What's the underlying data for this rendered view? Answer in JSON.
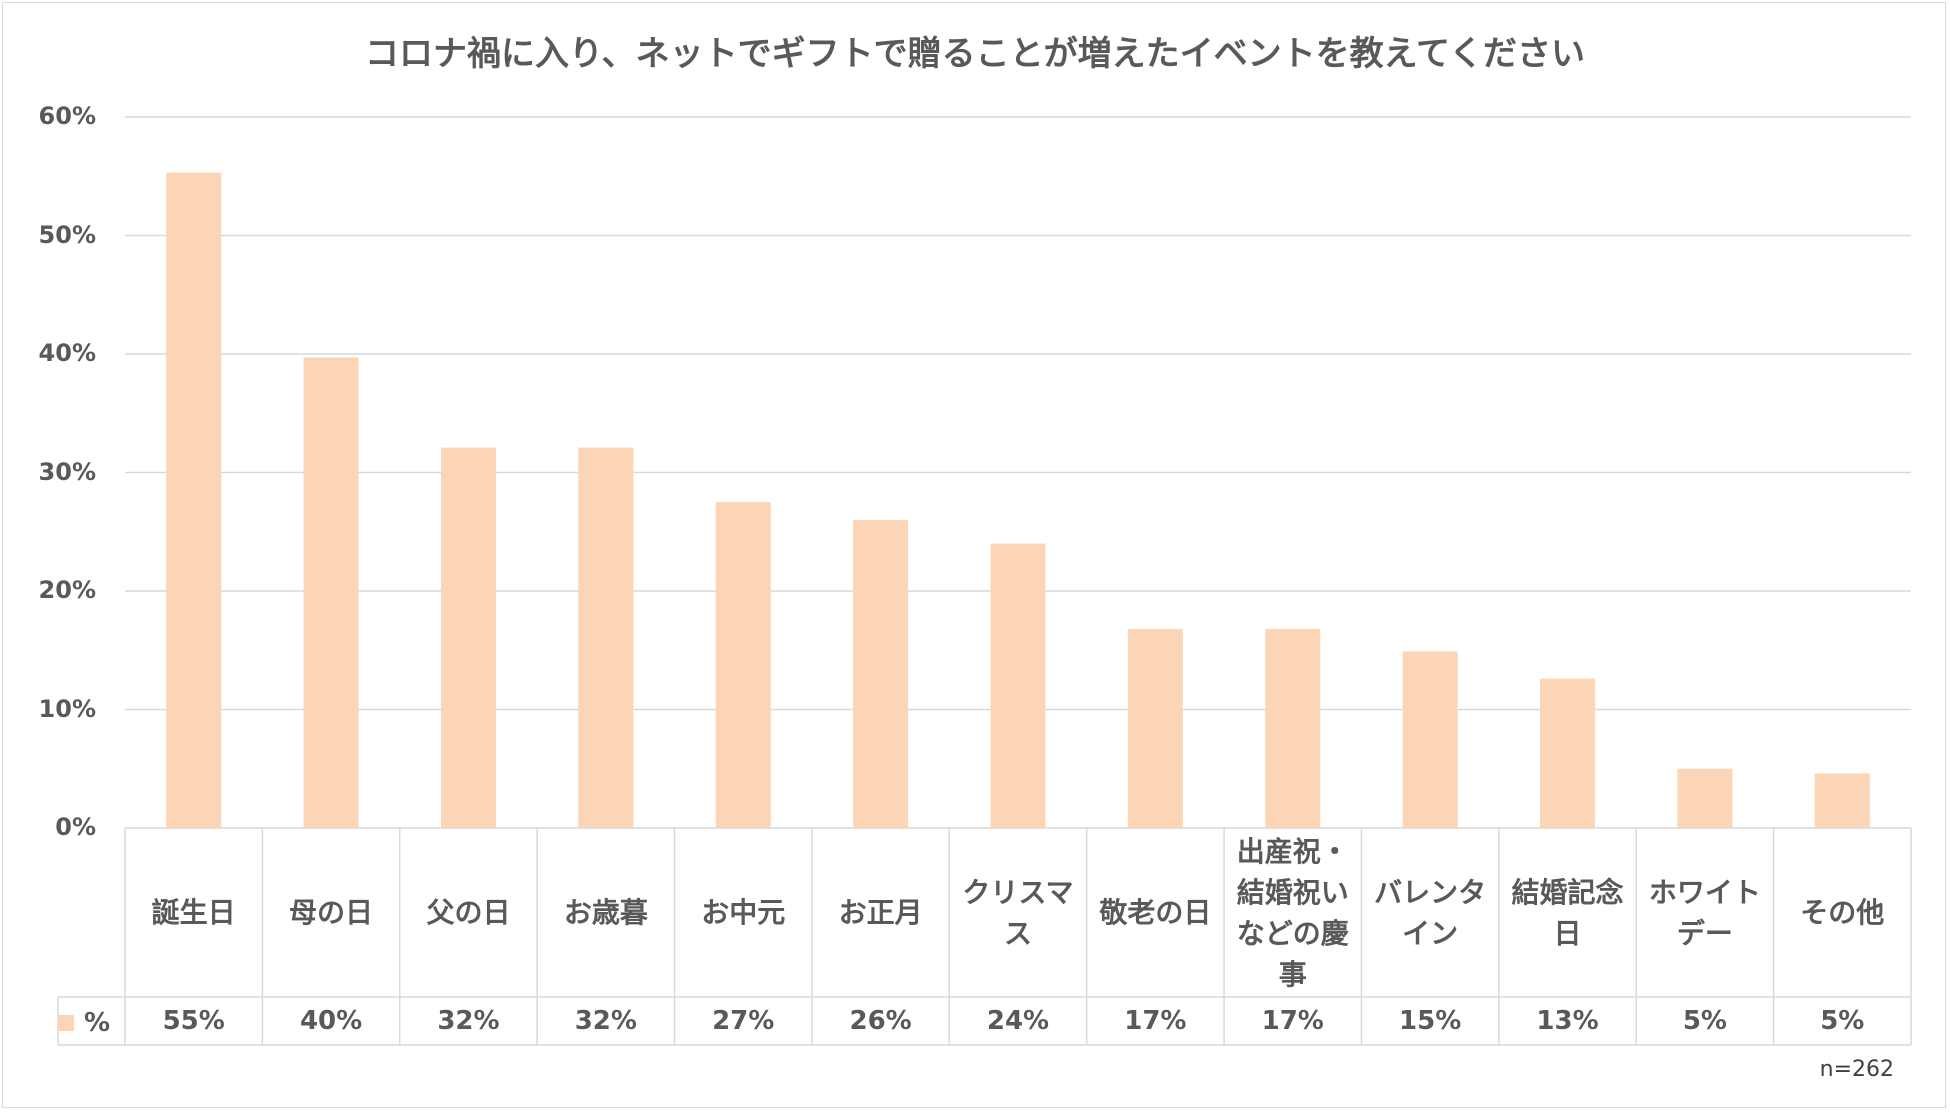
{
  "chart_data": {
    "type": "bar",
    "title": "コロナ禍に入り、ネットでギフトで贈ることが増えたイベントを教えてください",
    "categories": [
      "誕生日",
      "母の日",
      "父の日",
      "お歳暮",
      "お中元",
      "お正月",
      "クリスマス",
      "敬老の日",
      "出産祝・結婚祝いなどの慶事",
      "バレンタイン",
      "結婚記念日",
      "ホワイトデー",
      "その他"
    ],
    "category_display": [
      "誕生日",
      "母の日",
      "父の日",
      "お歳暮",
      "お中元",
      "お正月",
      "クリスマ\nス",
      "敬老の日",
      "出産祝・\n結婚祝い\nなどの慶\n事",
      "バレンタ\nイン",
      "結婚記念\n日",
      "ホワイト\nデー",
      "その他"
    ],
    "series": [
      {
        "name": "%",
        "values": [
          55.3,
          39.7,
          32.1,
          32.1,
          27.5,
          26.0,
          24.0,
          16.8,
          16.8,
          14.9,
          12.6,
          5.0,
          4.6
        ],
        "labels": [
          "55%",
          "40%",
          "32%",
          "32%",
          "27%",
          "26%",
          "24%",
          "17%",
          "17%",
          "15%",
          "13%",
          "5%",
          "5%"
        ],
        "color": "#fbd5b5"
      }
    ],
    "ylim": [
      0,
      60
    ],
    "yticks": [
      0,
      10,
      20,
      30,
      40,
      50,
      60
    ],
    "ytick_labels": [
      "0%",
      "10%",
      "20%",
      "30%",
      "40%",
      "50%",
      "60%"
    ],
    "xlabel": "",
    "ylabel": "",
    "grid": true,
    "legend": "data-table-left",
    "note": "n=262"
  }
}
